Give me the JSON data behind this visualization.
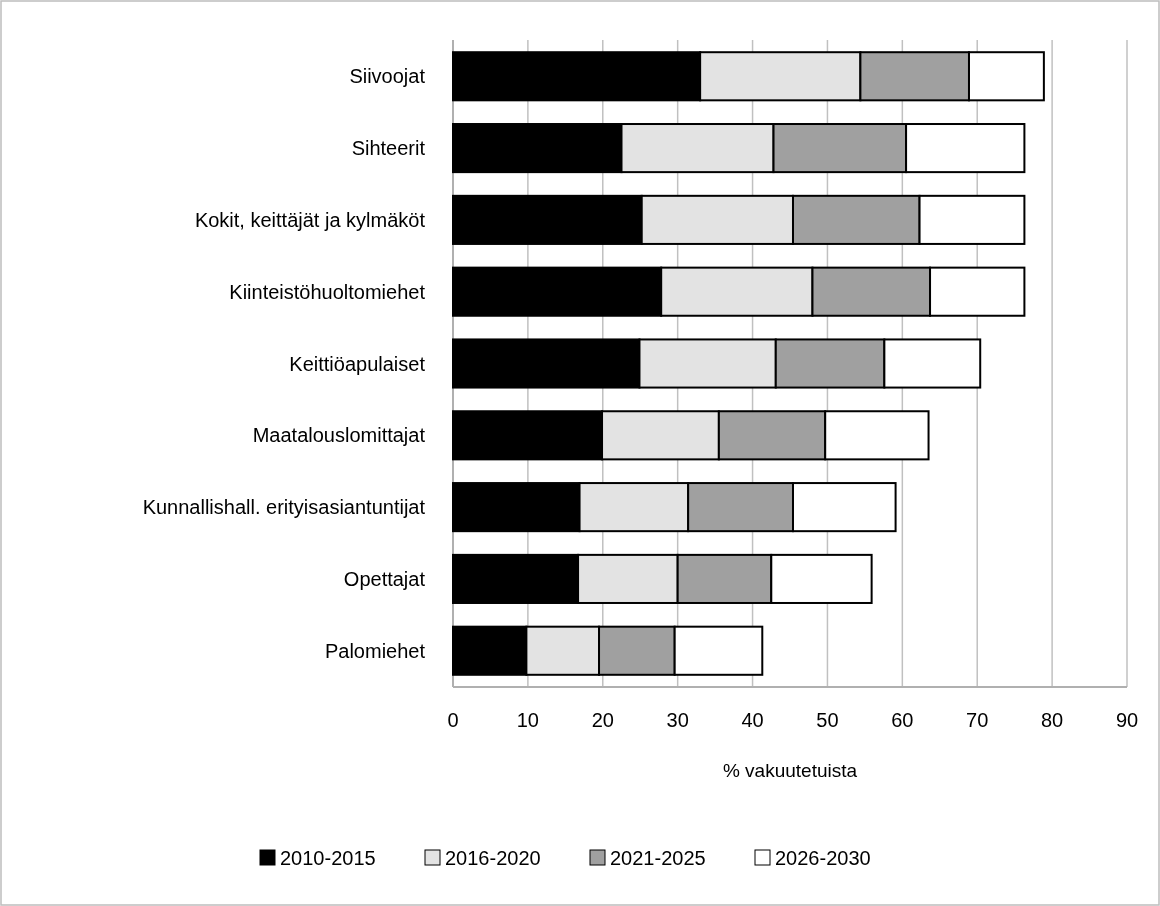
{
  "chart_data": {
    "type": "bar",
    "orientation": "horizontal",
    "stacked": true,
    "categories": [
      "Siivoojat",
      "Sihteerit",
      "Kokit, keittäjät ja kylmäköt",
      "Kiinteistöhuoltomiehet",
      "Keittiöapulaiset",
      "Maatalouslomittajat",
      "Kunnallishall. erityisasiantuntijat",
      "Opettajat",
      "Palomiehet"
    ],
    "series": [
      {
        "name": "2010-2015",
        "color": "#000000",
        "values": [
          33.0,
          22.5,
          25.2,
          27.8,
          24.9,
          19.9,
          16.9,
          16.7,
          9.8
        ]
      },
      {
        "name": "2016-2020",
        "color": "#e3e3e3",
        "values": [
          21.4,
          20.3,
          20.2,
          20.2,
          18.2,
          15.6,
          14.5,
          13.3,
          9.7
        ]
      },
      {
        "name": "2021-2025",
        "color": "#a0a0a0",
        "values": [
          14.5,
          17.7,
          16.9,
          15.7,
          14.5,
          14.2,
          14.0,
          12.5,
          10.1
        ]
      },
      {
        "name": "2026-2030",
        "color": "#ffffff",
        "values": [
          10.0,
          15.8,
          14.0,
          12.6,
          12.8,
          13.8,
          13.7,
          13.4,
          11.7
        ]
      }
    ],
    "xlim": [
      0,
      90
    ],
    "xticks": [
      0,
      10,
      20,
      30,
      40,
      50,
      60,
      70,
      80,
      90
    ],
    "xlabel": "% vakuutetuista",
    "grid": "x",
    "legend": "bottom"
  }
}
